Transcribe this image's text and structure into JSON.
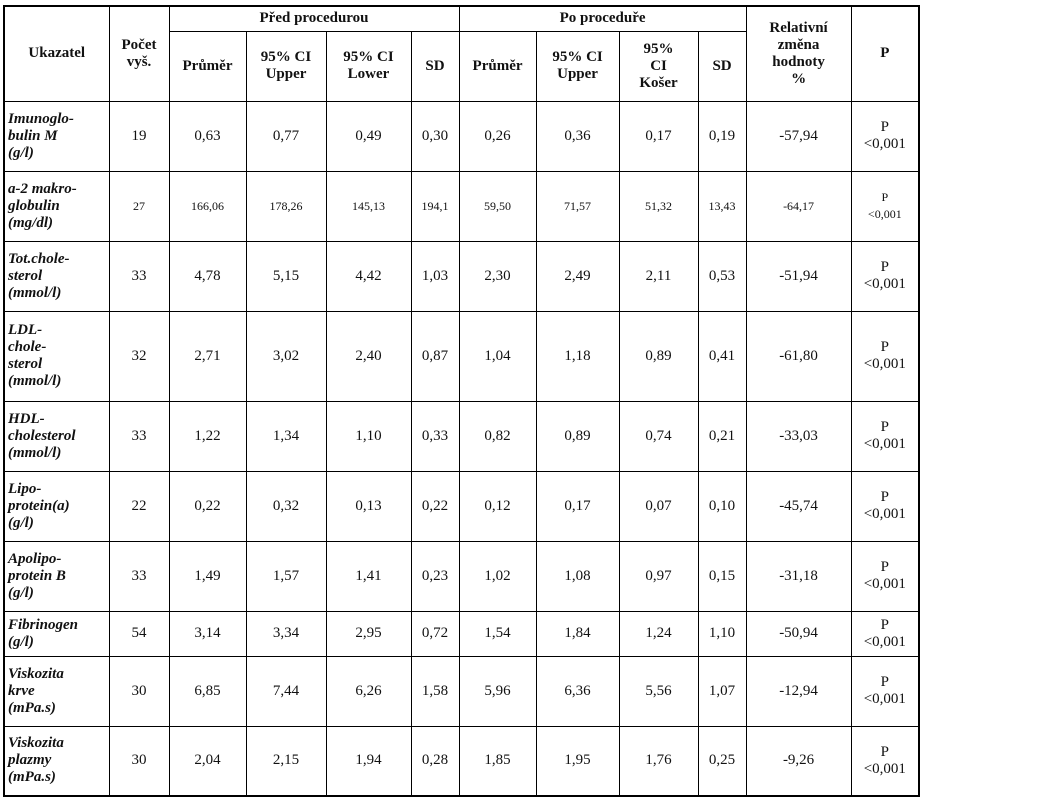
{
  "header": {
    "indicator": "Ukazatel",
    "count": "Počet\nvyš.",
    "before": "Před procedurou",
    "after": "Po proceduře",
    "change": "Relativní\nzměna\nhodnoty\n%",
    "p": "P",
    "before_columns": [
      "Průměr",
      "95% CI\nUpper",
      "95% CI\nLower",
      "SD"
    ],
    "after_columns": [
      "Průměr",
      "95% CI\nUpper",
      "95%\nCI\nKošer",
      "SD"
    ]
  },
  "rows": [
    [
      "Imunoglo-\nbulin M\n(g/l)",
      "19",
      "0,63",
      "0,77",
      "0,49",
      "0,30",
      "0,26",
      "0,36",
      "0,17",
      "0,19",
      "-57,94",
      "P\n<0,001"
    ],
    [
      "a-2 makro-\nglobulin\n(mg/dl)",
      "27",
      "166,06",
      "178,26",
      "145,13",
      "194,1",
      "59,50",
      "71,57",
      "51,32",
      "13,43",
      "-64,17",
      "P\n<0,001"
    ],
    [
      "Tot.chole-\nsterol\n(mmol/l)",
      "33",
      "4,78",
      "5,15",
      "4,42",
      "1,03",
      "2,30",
      "2,49",
      "2,11",
      "0,53",
      "-51,94",
      "P\n<0,001"
    ],
    [
      "LDL-\nchole-\nsterol\n(mmol/l)",
      "32",
      "2,71",
      "3,02",
      "2,40",
      "0,87",
      "1,04",
      "1,18",
      "0,89",
      "0,41",
      "-61,80",
      "P\n<0,001"
    ],
    [
      "HDL-\ncholesterol\n(mmol/l)",
      "33",
      "1,22",
      "1,34",
      "1,10",
      "0,33",
      "0,82",
      "0,89",
      "0,74",
      "0,21",
      "-33,03",
      "P\n<0,001"
    ],
    [
      "Lipo-\nprotein(a)\n(g/l)",
      "22",
      "0,22",
      "0,32",
      "0,13",
      "0,22",
      "0,12",
      "0,17",
      "0,07",
      "0,10",
      "-45,74",
      "P\n<0,001"
    ],
    [
      "Apolipo-\nprotein B\n(g/l)",
      "33",
      "1,49",
      "1,57",
      "1,41",
      "0,23",
      "1,02",
      "1,08",
      "0,97",
      "0,15",
      "-31,18",
      "P\n<0,001"
    ],
    [
      "Fibrinogen\n(g/l)",
      "54",
      "3,14",
      "3,34",
      "2,95",
      "0,72",
      "1,54",
      "1,84",
      "1,24",
      "1,10",
      "-50,94",
      "P\n<0,001"
    ],
    [
      "Viskozita\nkrve\n(mPa.s)",
      "30",
      "6,85",
      "7,44",
      "6,26",
      "1,58",
      "5,96",
      "6,36",
      "5,56",
      "1,07",
      "-12,94",
      "P\n<0,001"
    ],
    [
      "Viskozita\nplazmy\n(mPa.s)",
      "30",
      "2,04",
      "2,15",
      "1,94",
      "0,28",
      "1,85",
      "1,95",
      "1,76",
      "0,25",
      "-9,26",
      "P\n<0,001"
    ]
  ]
}
